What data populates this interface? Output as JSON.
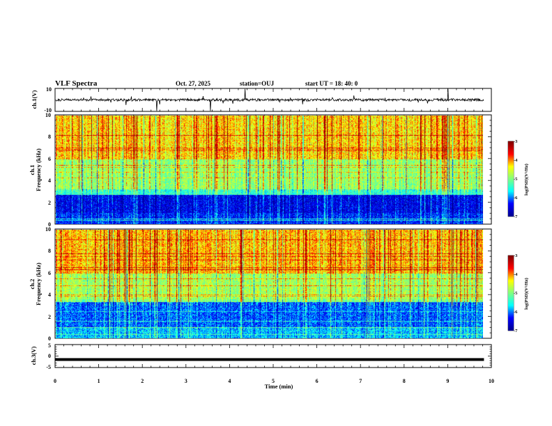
{
  "header": {
    "title": "VLF Spectra",
    "date": "Oct. 27, 2025",
    "station": "station=OUJ",
    "start_time": "start  UT =   18: 40: 0"
  },
  "chart_data": [
    {
      "type": "line",
      "title": "ch.1 waveform",
      "ylabel": "ch.1(V)",
      "ylim": [
        -10,
        10
      ],
      "yticks": [
        "10",
        "-10"
      ],
      "baseline_v": 0,
      "xlim": [
        0,
        9.83
      ]
    },
    {
      "type": "heatmap",
      "title": "ch.1 spectrogram",
      "ylabel": "ch.1",
      "ylabel2": "Frequency (kHz)",
      "ylim": [
        0,
        10
      ],
      "yticks": [
        "0",
        "2",
        "4",
        "6",
        "8",
        "10"
      ],
      "xlim": [
        0,
        9.83
      ],
      "colorbar": {
        "label": "log(PSD)(V²/Hz)",
        "range": [
          -7,
          -3
        ],
        "ticks": [
          "-3",
          "-4",
          "-5",
          "-6",
          "-7"
        ]
      },
      "bands_log_psd": [
        {
          "f_khz": [
            0,
            1.0
          ],
          "value": -6.3
        },
        {
          "f_khz": [
            1.0,
            2.7
          ],
          "value": -6.5
        },
        {
          "f_khz": [
            2.7,
            3.2
          ],
          "value": -5.4
        },
        {
          "f_khz": [
            3.2,
            6.0
          ],
          "value": -4.9
        },
        {
          "f_khz": [
            6.0,
            10.0
          ],
          "value": -4.3
        }
      ]
    },
    {
      "type": "heatmap",
      "title": "ch.2 spectrogram",
      "ylabel": "ch.2",
      "ylabel2": "Frequency (kHz)",
      "ylim": [
        0,
        10
      ],
      "yticks": [
        "0",
        "2",
        "4",
        "6",
        "8",
        "10"
      ],
      "xlim": [
        0,
        9.83
      ],
      "colorbar": {
        "label": "log(PSD)(V²/Hz)",
        "range": [
          -7,
          -3
        ],
        "ticks": [
          "-3",
          "-4",
          "-5",
          "-6",
          "-7"
        ]
      },
      "bands_log_psd": [
        {
          "f_khz": [
            0,
            1.0
          ],
          "value": -5.8
        },
        {
          "f_khz": [
            1.0,
            3.3
          ],
          "value": -6.1
        },
        {
          "f_khz": [
            3.3,
            3.6
          ],
          "value": -5.0
        },
        {
          "f_khz": [
            3.6,
            6.0
          ],
          "value": -4.8
        },
        {
          "f_khz": [
            6.0,
            10.0
          ],
          "value": -4.2
        }
      ]
    },
    {
      "type": "line",
      "title": "ch.3 waveform",
      "ylabel": "ch.3(V)",
      "ylim": [
        -5,
        5
      ],
      "yticks": [
        "5",
        "0",
        "-5"
      ],
      "baseline_v": -1.5,
      "xlim": [
        0,
        9.83
      ]
    }
  ],
  "x_axis": {
    "label": "Time  (min)",
    "range": [
      0,
      10
    ],
    "ticks": [
      "0",
      "1",
      "2",
      "3",
      "4",
      "5",
      "6",
      "7",
      "8",
      "9",
      "10"
    ]
  },
  "colors": {
    "jet": [
      "#00008f",
      "#0000ff",
      "#00ffff",
      "#80ff80",
      "#ffff00",
      "#ff0000",
      "#800000"
    ]
  }
}
